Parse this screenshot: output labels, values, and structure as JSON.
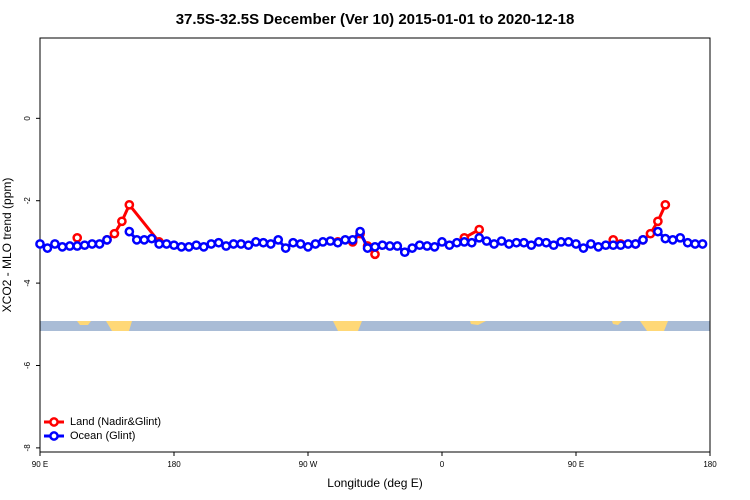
{
  "chart_data": {
    "type": "line",
    "title": "37.5S-32.5S December (Ver 10)   2015-01-01 to 2020-12-18",
    "x_label": "Longitude (deg E)",
    "y_label": "XCO2 - MLO trend (ppm)",
    "xlim": [
      90,
      540
    ],
    "xticks": [
      {
        "value": 90,
        "label": "90 E"
      },
      180,
      {
        "value": 270,
        "label": "90 W"
      },
      {
        "value": 360,
        "label": "0"
      },
      {
        "value": 450,
        "label": "90 E"
      },
      {
        "value": 540,
        "label": "180"
      }
    ],
    "ylim": [
      -8.1,
      1.95
    ],
    "yticks": [
      0,
      -2,
      -4,
      -6,
      -8
    ],
    "legend": "bottom-left",
    "series": [
      {
        "name": "Land (Nadir&Glint)",
        "color": "#ff0000",
        "x": [
          115,
          125,
          135,
          140,
          145,
          150,
          170,
          280,
          290,
          300,
          305,
          310,
          315,
          330,
          375,
          385,
          395,
          475,
          480,
          490,
          495,
          500,
          505,
          510
        ],
        "values": [
          -2.9,
          null,
          -2.95,
          -2.8,
          -2.5,
          -2.1,
          -3.0,
          null,
          -3.0,
          -3.0,
          -2.8,
          -3.1,
          -3.3,
          null,
          -2.9,
          -2.7,
          null,
          -2.95,
          -3.05,
          -3.05,
          -2.95,
          -2.8,
          -2.5,
          -2.1
        ]
      },
      {
        "name": "Ocean (Glint)",
        "color": "#0000ff",
        "x": [
          90,
          95,
          100,
          105,
          110,
          115,
          120,
          125,
          130,
          135,
          140,
          145,
          150,
          155,
          160,
          165,
          170,
          175,
          180,
          185,
          190,
          195,
          200,
          205,
          210,
          215,
          220,
          225,
          230,
          235,
          240,
          245,
          250,
          255,
          260,
          265,
          270,
          275,
          280,
          285,
          290,
          295,
          300,
          305,
          310,
          315,
          320,
          325,
          330,
          335,
          340,
          345,
          350,
          355,
          360,
          365,
          370,
          375,
          380,
          385,
          390,
          395,
          400,
          405,
          410,
          415,
          420,
          425,
          430,
          435,
          440,
          445,
          450,
          455,
          460,
          465,
          470,
          475,
          480,
          485,
          490,
          495,
          500,
          505,
          510,
          515,
          520,
          525,
          530,
          535
        ],
        "values": [
          -3.05,
          -3.15,
          -3.05,
          -3.12,
          -3.1,
          -3.1,
          -3.08,
          -3.05,
          -3.05,
          -2.95,
          null,
          null,
          -2.75,
          -2.95,
          -2.95,
          -2.92,
          -3.05,
          -3.05,
          -3.08,
          -3.12,
          -3.12,
          -3.08,
          -3.12,
          -3.05,
          -3.02,
          -3.1,
          -3.05,
          -3.05,
          -3.08,
          -3.0,
          -3.02,
          -3.05,
          -2.95,
          -3.15,
          -3.02,
          -3.05,
          -3.12,
          -3.05,
          -3.0,
          -2.98,
          -3.02,
          -2.95,
          -2.95,
          -2.75,
          -3.15,
          -3.12,
          -3.08,
          -3.1,
          -3.1,
          -3.25,
          -3.15,
          -3.08,
          -3.1,
          -3.12,
          -3.0,
          -3.08,
          -3.02,
          -3.0,
          -3.02,
          -2.9,
          -2.98,
          -3.05,
          -2.98,
          -3.05,
          -3.02,
          -3.02,
          -3.08,
          -3.0,
          -3.02,
          -3.08,
          -3.0,
          -3.0,
          -3.05,
          -3.15,
          -3.05,
          -3.12,
          -3.08,
          -3.08,
          -3.08,
          -3.05,
          -3.05,
          -2.95,
          null,
          -2.75,
          -2.92,
          -2.95,
          -2.9,
          -3.02,
          -3.05,
          -3.05
        ]
      }
    ]
  }
}
